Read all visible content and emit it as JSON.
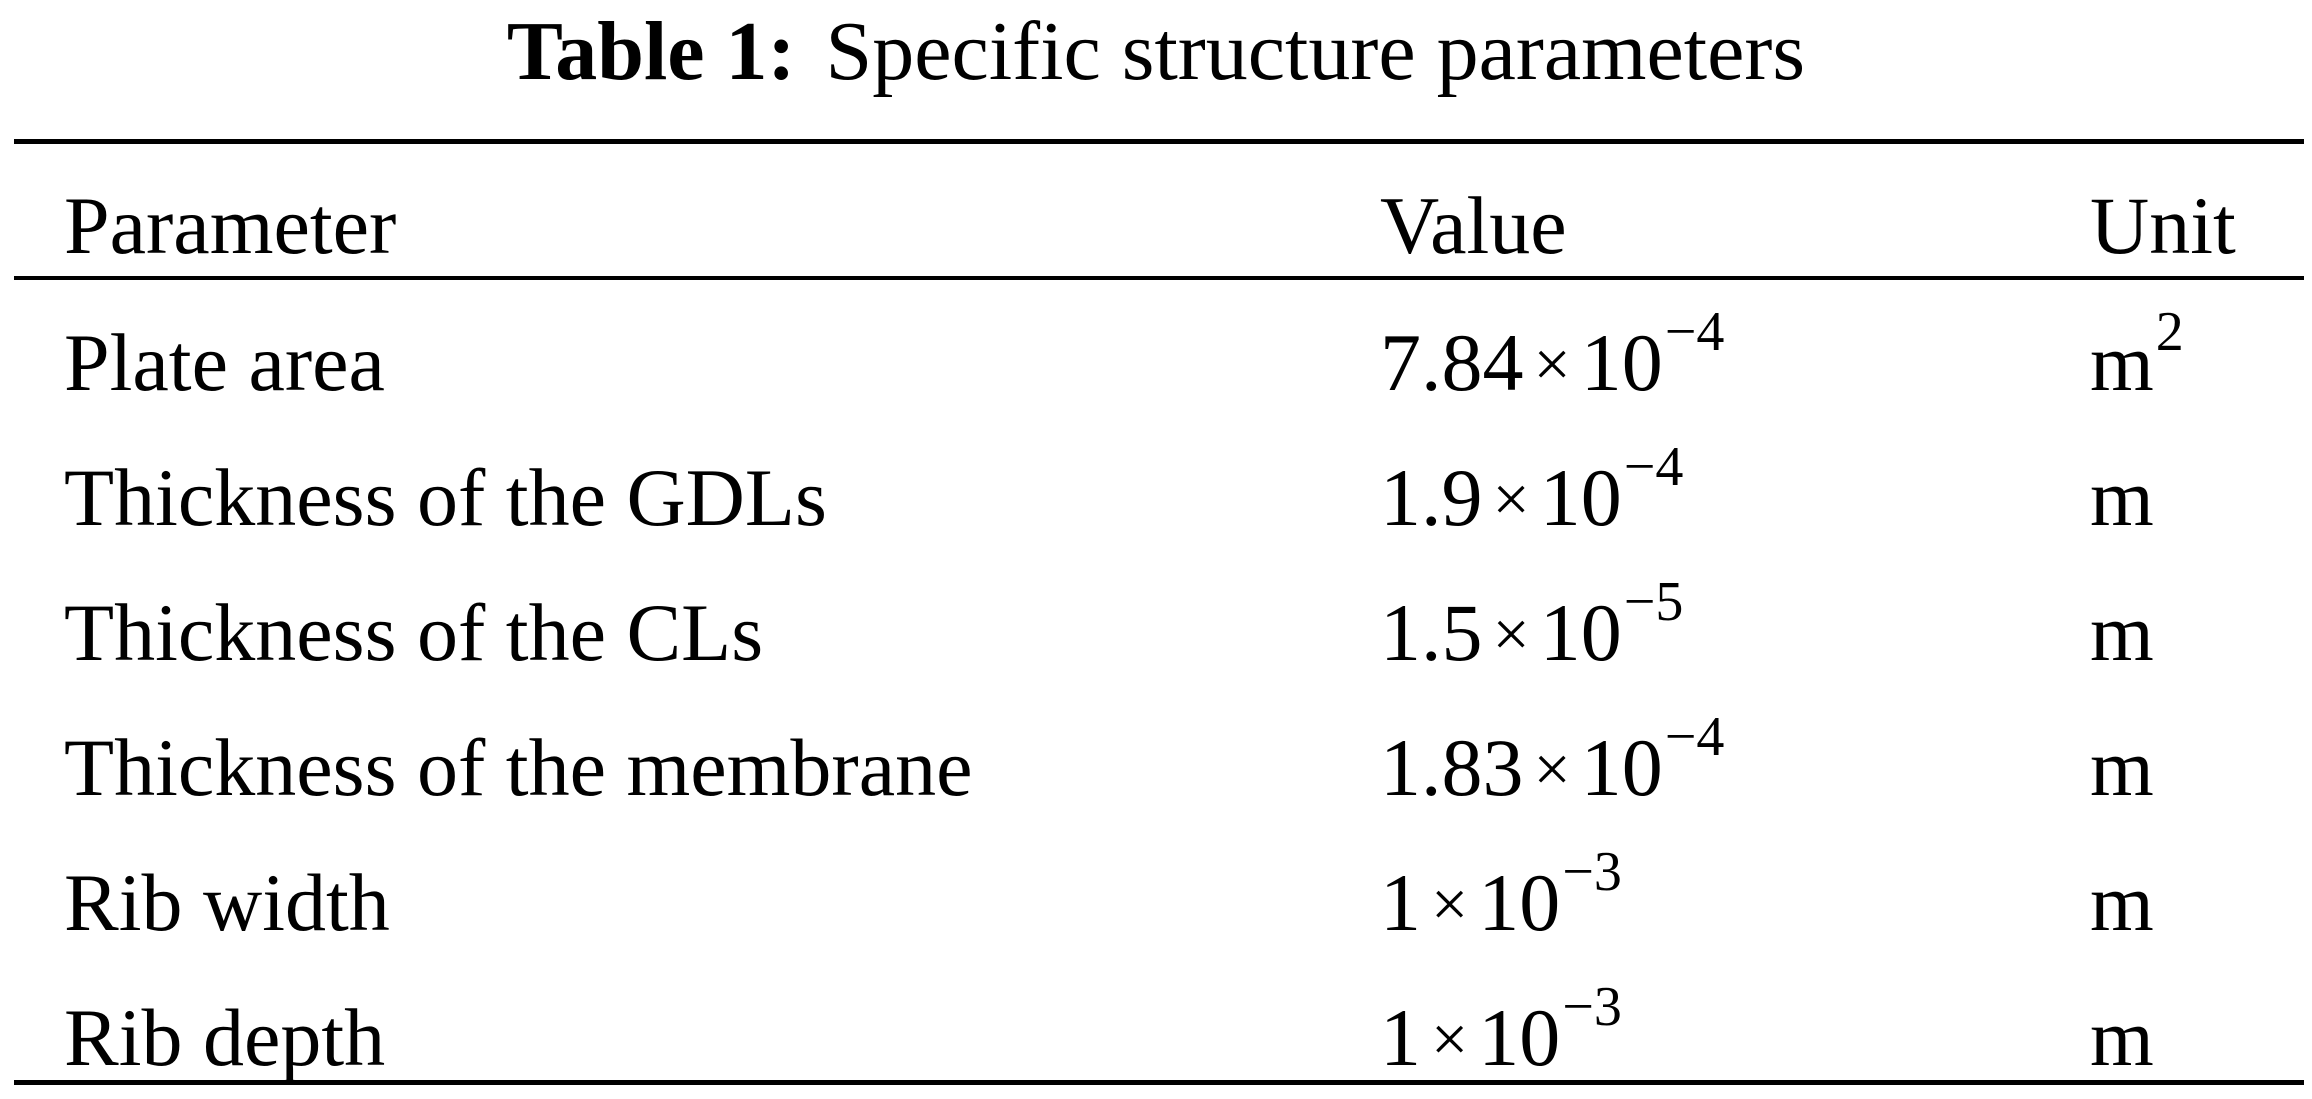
{
  "caption": {
    "label": "Table 1:",
    "text": "Specific structure parameters"
  },
  "table": {
    "headers": {
      "parameter": "Parameter",
      "value": "Value",
      "unit": "Unit"
    },
    "rows": [
      {
        "parameter": "Plate area",
        "mantissa": "7.84",
        "times": "×",
        "base": "10",
        "exponent": "−4",
        "unit": "m",
        "unit_exp": "2"
      },
      {
        "parameter": "Thickness of the GDLs",
        "mantissa": "1.9",
        "times": "×",
        "base": "10",
        "exponent": "−4",
        "unit": "m",
        "unit_exp": ""
      },
      {
        "parameter": "Thickness of the CLs",
        "mantissa": "1.5",
        "times": "×",
        "base": "10",
        "exponent": "−5",
        "unit": "m",
        "unit_exp": ""
      },
      {
        "parameter": "Thickness of the membrane",
        "mantissa": "1.83",
        "times": "×",
        "base": "10",
        "exponent": "−4",
        "unit": "m",
        "unit_exp": ""
      },
      {
        "parameter": "Rib width",
        "mantissa": "1",
        "times": "×",
        "base": "10",
        "exponent": "−3",
        "unit": "m",
        "unit_exp": ""
      },
      {
        "parameter": "Rib depth",
        "mantissa": "1",
        "times": "×",
        "base": "10",
        "exponent": "−3",
        "unit": "m",
        "unit_exp": ""
      }
    ]
  }
}
